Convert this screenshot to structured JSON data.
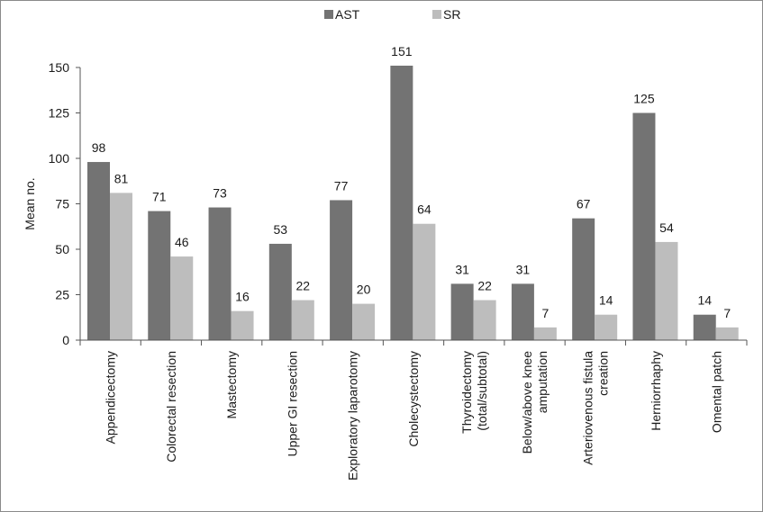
{
  "chart_data": {
    "type": "bar",
    "title": "",
    "xlabel": "",
    "ylabel": "Mean no.",
    "ylim": [
      0,
      150
    ],
    "yticks": [
      0,
      25,
      50,
      75,
      100,
      125,
      150
    ],
    "grid": false,
    "legend_position": "top-center",
    "categories": [
      [
        "Appendicectomy"
      ],
      [
        "Colorectal resection"
      ],
      [
        "Mastectomy"
      ],
      [
        "Upper GI resection"
      ],
      [
        "Exploratory laparotomy"
      ],
      [
        "Cholecystectomy"
      ],
      [
        "Thyroidectomy",
        "(total/subtotal)"
      ],
      [
        "Below/above knee",
        "amputation"
      ],
      [
        "Arteriovenous fistula",
        "creation"
      ],
      [
        "Herniorrhaphy"
      ],
      [
        "Omental patch"
      ]
    ],
    "series": [
      {
        "name": "AST",
        "color": "#737373",
        "values": [
          98,
          71,
          73,
          53,
          77,
          151,
          31,
          31,
          67,
          125,
          14
        ]
      },
      {
        "name": "SR",
        "color": "#bdbdbd",
        "values": [
          81,
          46,
          16,
          22,
          20,
          64,
          22,
          7,
          14,
          54,
          7
        ]
      }
    ]
  }
}
